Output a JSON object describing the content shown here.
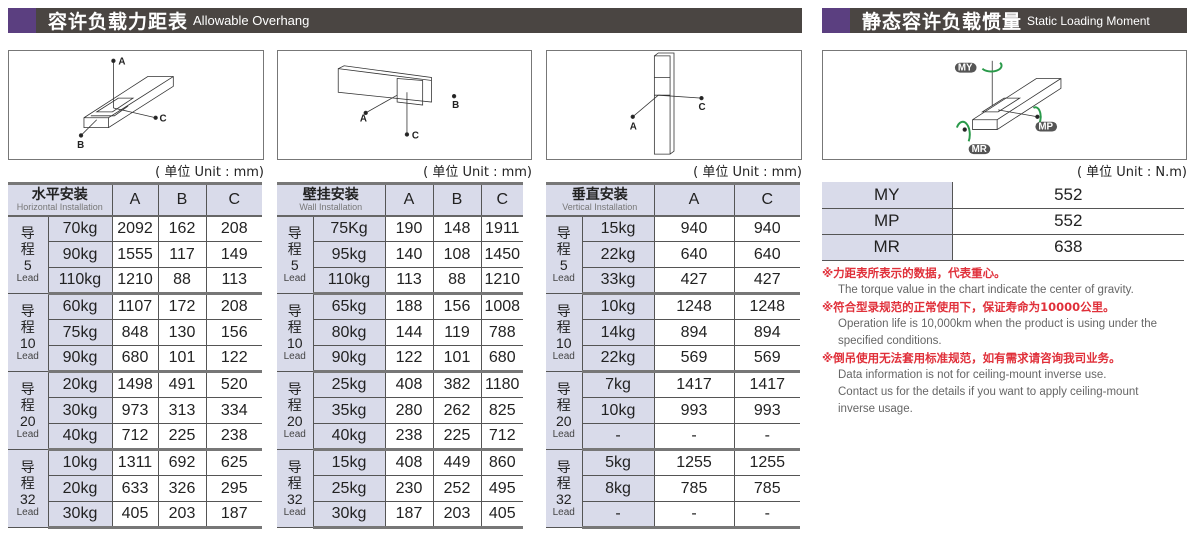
{
  "overhang": {
    "title_cn": "容许负载力距表",
    "title_en": "Allowable Overhang"
  },
  "moment": {
    "title_cn": "静态容许负载惯量",
    "title_en": "Static Loading Moment"
  },
  "diagram_labels": {
    "a": "A",
    "b": "B",
    "c": "C",
    "my": "MY",
    "mp": "MP",
    "mr": "MR"
  },
  "colors": {
    "header_bg": "#4a4542",
    "accent_purple": "#5b3f80",
    "cell_label_bg": "#d9dbea",
    "note_red": "#e0303a",
    "arrow_green": "#2a9a4a"
  },
  "tables": [
    {
      "unit": "( 单位 Unit : mm)",
      "title_cn": "水平安装",
      "title_en": "Horizontal Installation",
      "columns": [
        "A",
        "B",
        "C"
      ],
      "groups": [
        {
          "cn": "导程",
          "num": "5",
          "en": "Lead",
          "rows": [
            [
              "70kg",
              "2092",
              "162",
              "208"
            ],
            [
              "90kg",
              "1555",
              "117",
              "149"
            ],
            [
              "110kg",
              "1210",
              "88",
              "113"
            ]
          ]
        },
        {
          "cn": "导程",
          "num": "10",
          "en": "Lead",
          "rows": [
            [
              "60kg",
              "1107",
              "172",
              "208"
            ],
            [
              "75kg",
              "848",
              "130",
              "156"
            ],
            [
              "90kg",
              "680",
              "101",
              "122"
            ]
          ]
        },
        {
          "cn": "导程",
          "num": "20",
          "en": "Lead",
          "rows": [
            [
              "20kg",
              "1498",
              "491",
              "520"
            ],
            [
              "30kg",
              "973",
              "313",
              "334"
            ],
            [
              "40kg",
              "712",
              "225",
              "238"
            ]
          ]
        },
        {
          "cn": "导程",
          "num": "32",
          "en": "Lead",
          "rows": [
            [
              "10kg",
              "1311",
              "692",
              "625"
            ],
            [
              "20kg",
              "633",
              "326",
              "295"
            ],
            [
              "30kg",
              "405",
              "203",
              "187"
            ]
          ]
        }
      ]
    },
    {
      "unit": "( 单位 Unit : mm)",
      "title_cn": "壁挂安装",
      "title_en": "Wall Installation",
      "columns": [
        "A",
        "B",
        "C"
      ],
      "groups": [
        {
          "cn": "导程",
          "num": "5",
          "en": "Lead",
          "rows": [
            [
              "75Kg",
              "190",
              "148",
              "1911"
            ],
            [
              "95kg",
              "140",
              "108",
              "1450"
            ],
            [
              "110kg",
              "113",
              "88",
              "1210"
            ]
          ]
        },
        {
          "cn": "导程",
          "num": "10",
          "en": "Lead",
          "rows": [
            [
              "65kg",
              "188",
              "156",
              "1008"
            ],
            [
              "80kg",
              "144",
              "119",
              "788"
            ],
            [
              "90kg",
              "122",
              "101",
              "680"
            ]
          ]
        },
        {
          "cn": "导程",
          "num": "20",
          "en": "Lead",
          "rows": [
            [
              "25kg",
              "408",
              "382",
              "1180"
            ],
            [
              "35kg",
              "280",
              "262",
              "825"
            ],
            [
              "40kg",
              "238",
              "225",
              "712"
            ]
          ]
        },
        {
          "cn": "导程",
          "num": "32",
          "en": "Lead",
          "rows": [
            [
              "15kg",
              "408",
              "449",
              "860"
            ],
            [
              "25kg",
              "230",
              "252",
              "495"
            ],
            [
              "30kg",
              "187",
              "203",
              "405"
            ]
          ]
        }
      ]
    },
    {
      "unit": "( 单位 Unit : mm)",
      "title_cn": "垂直安装",
      "title_en": "Vertical Installation",
      "columns": [
        "A",
        "C"
      ],
      "groups": [
        {
          "cn": "导程",
          "num": "5",
          "en": "Lead",
          "rows": [
            [
              "15kg",
              "940",
              "940"
            ],
            [
              "22kg",
              "640",
              "640"
            ],
            [
              "33kg",
              "427",
              "427"
            ]
          ]
        },
        {
          "cn": "导程",
          "num": "10",
          "en": "Lead",
          "rows": [
            [
              "10kg",
              "1248",
              "1248"
            ],
            [
              "14kg",
              "894",
              "894"
            ],
            [
              "22kg",
              "569",
              "569"
            ]
          ]
        },
        {
          "cn": "导程",
          "num": "20",
          "en": "Lead",
          "rows": [
            [
              "7kg",
              "1417",
              "1417"
            ],
            [
              "10kg",
              "993",
              "993"
            ],
            [
              "-",
              "-",
              "-"
            ]
          ]
        },
        {
          "cn": "导程",
          "num": "32",
          "en": "Lead",
          "rows": [
            [
              "5kg",
              "1255",
              "1255"
            ],
            [
              "8kg",
              "785",
              "785"
            ],
            [
              "-",
              "-",
              "-"
            ]
          ]
        }
      ]
    }
  ],
  "moment_table": {
    "unit": "( 单位 Unit : N.m)",
    "rows": [
      [
        "MY",
        "552"
      ],
      [
        "MP",
        "552"
      ],
      [
        "MR",
        "638"
      ]
    ]
  },
  "notes": [
    {
      "cn": "※力距表所表示的数据，代表重心。",
      "en": [
        "The torque value in the chart indicate the center of gravity."
      ]
    },
    {
      "cn": "※符合型录规范的正常使用下，保证寿命为10000公里。",
      "en": [
        "Operation life is 10,000km when the product is using under the",
        "specified conditions."
      ]
    },
    {
      "cn": "※倒吊使用无法套用标准规范，如有需求请咨询我司业务。",
      "en": [
        "Data information is not for ceiling-mount inverse use.",
        "Contact us for the details if you want to apply ceiling-mount",
        "inverse usage."
      ]
    }
  ]
}
